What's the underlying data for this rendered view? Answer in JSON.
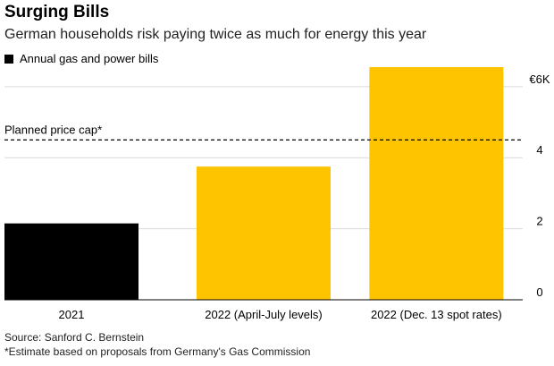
{
  "header": {
    "title": "Surging Bills",
    "subtitle": "German households risk paying twice as much for energy this year"
  },
  "legend": [
    {
      "label": "Annual gas and power bills",
      "color": "#000000"
    }
  ],
  "footer": {
    "source": "Source: Sanford C. Bernstein",
    "footnote": "*Estimate based on proposals from Germany's Gas Commission"
  },
  "chart_data": {
    "type": "bar",
    "categories": [
      "2021",
      "2022 (April-July levels)",
      "2022 (Dec. 13 spot rates)"
    ],
    "values": [
      2.15,
      3.75,
      6.55
    ],
    "bar_colors": [
      "#000000",
      "#ffc400",
      "#ffc400"
    ],
    "ylim": [
      0,
      6.55
    ],
    "yticks": [
      {
        "value": 0,
        "label": "0"
      },
      {
        "value": 2,
        "label": "2"
      },
      {
        "value": 4,
        "label": "4"
      },
      {
        "value": 6,
        "label": "€6K"
      }
    ],
    "reference_line": {
      "label": "Planned price cap*",
      "value": 4.5
    },
    "ylabel": "",
    "xlabel": "",
    "grid": true
  }
}
